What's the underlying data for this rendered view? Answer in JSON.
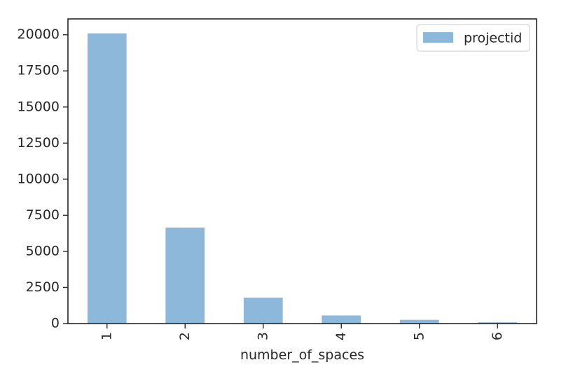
{
  "chart_data": {
    "type": "bar",
    "categories": [
      "1",
      "2",
      "3",
      "4",
      "5",
      "6"
    ],
    "series": [
      {
        "name": "projectid",
        "values": [
          20100,
          6650,
          1800,
          560,
          260,
          90
        ]
      }
    ],
    "title": "",
    "xlabel": "number_of_spaces",
    "ylabel": "",
    "ylim": [
      0,
      21100
    ],
    "yticks": [
      0,
      2500,
      5000,
      7500,
      10000,
      12500,
      15000,
      17500,
      20000
    ],
    "x_tick_rotation": 90,
    "grid": false,
    "legend": {
      "position": "top-right",
      "entries": [
        "projectid"
      ]
    },
    "colors": {
      "bar": "#8db8da",
      "axis": "#262626"
    }
  }
}
